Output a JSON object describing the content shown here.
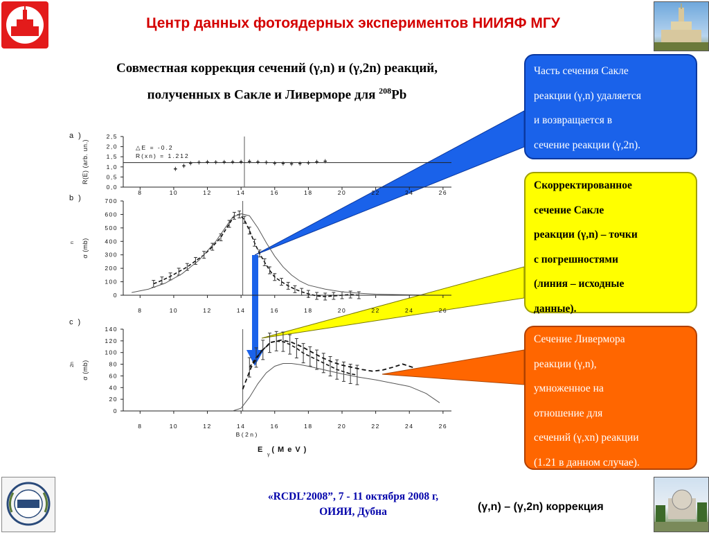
{
  "header": {
    "title": "Центр данных фотоядерных экспериментов НИИЯФ МГУ"
  },
  "subtitle": {
    "line1": "Совместная коррекция сечений (γ,n)  и (γ,2n) реакций,",
    "line2_prefix": "полученных в Сакле и Ливерморе для ",
    "line2_sup": "208",
    "line2_suffix": "Pb"
  },
  "callouts": {
    "blue": [
      "Часть сечения Сакле",
      " реакции (γ,n) удаляется",
      "и возвращается в",
      "сечение реакции (γ,2n)."
    ],
    "yellow": [
      "Скорректированное",
      "сечение Сакле",
      "реакции (γ,n) – точки",
      " с погрешностями",
      "(линия – исходные",
      "данные)."
    ],
    "orange": [
      "Сечение Ливермора",
      " реакции (γ,n),",
      "умноженное на",
      "отношение для",
      "сечений (γ,xn) реакции",
      "  (1.21 в данном случае)."
    ]
  },
  "footer": {
    "conference_line1": "«RCDL’2008”,  7 - 11 октября 2008 г,",
    "conference_line2": "ОИЯИ, Дубна",
    "correction_label": "(γ,n) – (γ,2n) коррекция"
  },
  "colors": {
    "title_red": "#d40000",
    "blue_box": "#1a62ea",
    "yellow_box": "#ffff00",
    "orange_box": "#ff6600",
    "arrow_blue": "#1a62ea"
  },
  "chart_data": [
    {
      "type": "scatter",
      "panel_label": "a )",
      "ylabel": "R(E) (arb. un.)",
      "xlim": [
        7,
        26.5
      ],
      "ylim": [
        0,
        2.5
      ],
      "x_ticks": [
        "8",
        "10",
        "12",
        "14",
        "16",
        "18",
        "20",
        "22",
        "24",
        "26"
      ],
      "y_ticks": [
        "0,0",
        "0,5",
        "1,0",
        "1,5",
        "2,0",
        "2,5"
      ],
      "annotations": [
        "△E = -0.2",
        "R(xn) = 1.212"
      ],
      "reference_line_y": 1.212,
      "vertical_line_x": 14.2,
      "points": {
        "x": [
          10.1,
          10.6,
          11.0,
          11.5,
          12.0,
          12.5,
          13.0,
          13.5,
          14.0,
          14.5,
          15.0,
          15.5,
          16.0,
          16.5,
          17.0,
          17.5,
          18.0,
          18.5,
          19.0
        ],
        "y": [
          0.9,
          1.05,
          1.18,
          1.22,
          1.24,
          1.23,
          1.24,
          1.24,
          1.25,
          1.27,
          1.24,
          1.22,
          1.18,
          1.17,
          1.15,
          1.16,
          1.2,
          1.25,
          1.28
        ]
      }
    },
    {
      "type": "line",
      "panel_label": "b )",
      "ylabel": "σ (mb)",
      "ylabel_sup": "n",
      "xlim": [
        7,
        26.5
      ],
      "ylim": [
        0,
        700
      ],
      "x_ticks": [
        "8",
        "10",
        "12",
        "14",
        "16",
        "18",
        "20",
        "22",
        "24",
        "26"
      ],
      "y_ticks": [
        "0",
        "100",
        "200",
        "300",
        "400",
        "500",
        "600",
        "700"
      ],
      "vertical_line_x": 14.1,
      "series": [
        {
          "role": "corrected-points",
          "x": [
            8.8,
            9.3,
            9.8,
            10.3,
            10.8,
            11.3,
            11.8,
            12.3,
            12.8,
            13.3,
            13.6,
            13.9,
            14.2,
            14.5,
            14.8,
            15.1,
            15.4,
            15.7,
            16.0,
            16.4,
            16.8,
            17.2,
            17.6,
            18.0,
            18.5,
            19.0,
            19.5,
            20.0,
            20.5,
            21.0
          ],
          "y": [
            85,
            110,
            140,
            175,
            210,
            255,
            300,
            360,
            430,
            530,
            590,
            600,
            560,
            480,
            390,
            310,
            245,
            185,
            135,
            100,
            70,
            45,
            25,
            10,
            -5,
            -10,
            -5,
            0,
            5,
            0
          ]
        },
        {
          "role": "original-line",
          "x": [
            7.5,
            8.5,
            9.5,
            10.5,
            11.5,
            12.5,
            13.0,
            13.5,
            14.0,
            14.5,
            15.0,
            15.5,
            16.0,
            16.5,
            17.0,
            17.5,
            18.0,
            19.0,
            20.0,
            21.0,
            22.0,
            23.0,
            24.0,
            25.0
          ],
          "y": [
            20,
            45,
            90,
            160,
            260,
            400,
            490,
            580,
            605,
            590,
            500,
            390,
            290,
            210,
            150,
            105,
            75,
            45,
            25,
            15,
            8,
            5,
            3,
            2
          ]
        }
      ]
    },
    {
      "type": "line",
      "panel_label": "c )",
      "ylabel": "σ (mb)",
      "ylabel_sup": "2n",
      "xlabel": "E (MeV)",
      "xlabel_sub": "γ",
      "threshold_label": "B(2n)",
      "xlim": [
        7,
        26.5
      ],
      "ylim": [
        0,
        150
      ],
      "x_ticks": [
        "8",
        "10",
        "12",
        "14",
        "16",
        "18",
        "20",
        "22",
        "24",
        "26"
      ],
      "y_ticks": [
        "0",
        "20",
        "40",
        "60",
        "80",
        "100",
        "120",
        "140"
      ],
      "vertical_line_x": 14.1,
      "series": [
        {
          "role": "corrected-points",
          "x": [
            14.5,
            14.9,
            15.3,
            15.7,
            16.1,
            16.5,
            16.9,
            17.3,
            17.7,
            18.1,
            18.5,
            18.9,
            19.3,
            19.7,
            20.1,
            20.5,
            20.9
          ],
          "y": [
            80,
            98,
            112,
            125,
            128,
            127,
            122,
            115,
            106,
            100,
            94,
            88,
            82,
            76,
            72,
            68,
            66
          ]
        },
        {
          "role": "livermore-dashed",
          "x": [
            14.1,
            14.6,
            15.2,
            15.8,
            16.4,
            17.0,
            17.6,
            18.2,
            18.8,
            19.4,
            20.0,
            20.6,
            21.2,
            21.8,
            22.4,
            23.0,
            23.6,
            24.3
          ],
          "y": [
            40,
            80,
            110,
            126,
            130,
            126,
            118,
            108,
            98,
            90,
            84,
            80,
            76,
            73,
            75,
            80,
            86,
            79
          ]
        },
        {
          "role": "original-line",
          "x": [
            13.5,
            14.0,
            14.5,
            15.0,
            15.5,
            16.0,
            16.5,
            17.0,
            17.5,
            18.0,
            19.0,
            20.0,
            21.0,
            22.0,
            23.0,
            24.0,
            25.0,
            25.8
          ],
          "y": [
            0,
            5,
            25,
            50,
            70,
            82,
            87,
            87,
            85,
            82,
            75,
            68,
            62,
            57,
            51,
            45,
            32,
            15
          ]
        }
      ]
    }
  ]
}
